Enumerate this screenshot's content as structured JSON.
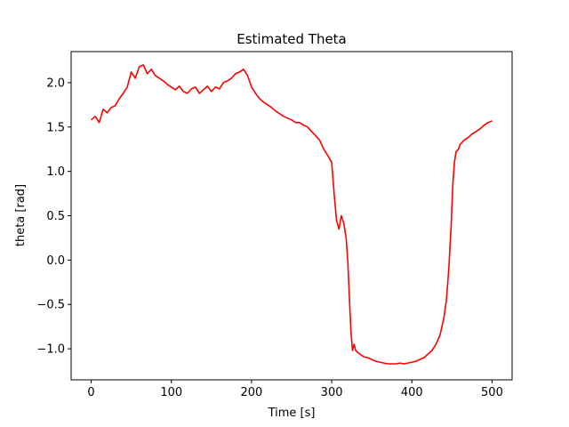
{
  "chart_data": {
    "type": "line",
    "title": "Estimated Theta",
    "xlabel": "Time [s]",
    "ylabel": "theta [rad]",
    "xlim": [
      -25,
      525
    ],
    "ylim": [
      -1.35,
      2.35
    ],
    "xticks": [
      0,
      100,
      200,
      300,
      400,
      500
    ],
    "xtick_labels": [
      "0",
      "100",
      "200",
      "300",
      "400",
      "500"
    ],
    "yticks": [
      -1.0,
      -0.5,
      0.0,
      0.5,
      1.0,
      1.5,
      2.0
    ],
    "ytick_labels": [
      "−1.0",
      "−0.5",
      "0.0",
      "0.5",
      "1.0",
      "1.5",
      "2.0"
    ],
    "grid": false,
    "series": [
      {
        "color": "#ff0000",
        "x": [
          0,
          5,
          10,
          15,
          20,
          25,
          30,
          35,
          40,
          45,
          50,
          55,
          60,
          65,
          70,
          75,
          80,
          85,
          90,
          95,
          100,
          105,
          110,
          115,
          120,
          125,
          130,
          135,
          140,
          145,
          150,
          155,
          160,
          165,
          170,
          175,
          180,
          185,
          190,
          195,
          200,
          205,
          210,
          215,
          220,
          225,
          230,
          235,
          240,
          245,
          250,
          255,
          260,
          265,
          270,
          275,
          280,
          285,
          290,
          295,
          300,
          303,
          306,
          309,
          312,
          315,
          318,
          320,
          322,
          324,
          326,
          328,
          330,
          335,
          340,
          345,
          350,
          355,
          360,
          365,
          370,
          375,
          380,
          385,
          390,
          395,
          400,
          405,
          410,
          415,
          420,
          425,
          430,
          435,
          440,
          443,
          446,
          449,
          451,
          453,
          455,
          458,
          460,
          465,
          470,
          475,
          480,
          485,
          490,
          495,
          500
        ],
        "y": [
          1.58,
          1.62,
          1.55,
          1.7,
          1.66,
          1.72,
          1.74,
          1.82,
          1.88,
          1.95,
          2.12,
          2.05,
          2.18,
          2.2,
          2.1,
          2.15,
          2.08,
          2.05,
          2.02,
          1.98,
          1.95,
          1.92,
          1.96,
          1.9,
          1.88,
          1.93,
          1.95,
          1.88,
          1.92,
          1.96,
          1.9,
          1.95,
          1.93,
          2.0,
          2.02,
          2.05,
          2.1,
          2.12,
          2.15,
          2.08,
          1.95,
          1.88,
          1.82,
          1.78,
          1.75,
          1.72,
          1.68,
          1.65,
          1.62,
          1.6,
          1.58,
          1.55,
          1.55,
          1.52,
          1.5,
          1.45,
          1.4,
          1.35,
          1.25,
          1.18,
          1.1,
          0.75,
          0.45,
          0.35,
          0.5,
          0.42,
          0.25,
          0.0,
          -0.4,
          -0.8,
          -1.02,
          -0.95,
          -1.02,
          -1.06,
          -1.09,
          -1.1,
          -1.12,
          -1.14,
          -1.15,
          -1.16,
          -1.17,
          -1.17,
          -1.17,
          -1.16,
          -1.17,
          -1.16,
          -1.15,
          -1.14,
          -1.12,
          -1.1,
          -1.06,
          -1.02,
          -0.95,
          -0.85,
          -0.65,
          -0.45,
          -0.1,
          0.4,
          0.85,
          1.1,
          1.22,
          1.25,
          1.3,
          1.35,
          1.38,
          1.42,
          1.45,
          1.48,
          1.52,
          1.55,
          1.57
        ]
      }
    ]
  }
}
